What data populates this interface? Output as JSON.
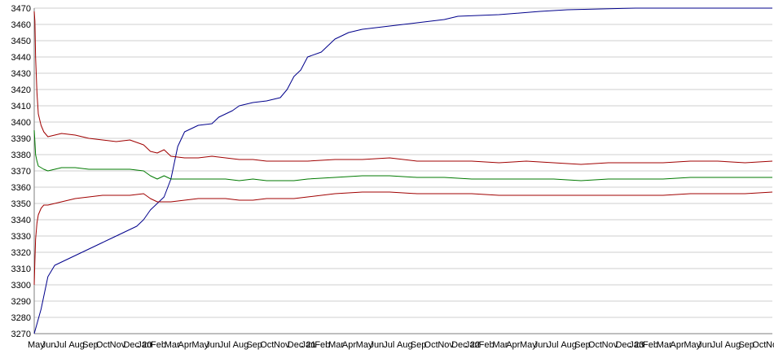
{
  "chart_data": {
    "type": "line",
    "title": "",
    "xlabel": "",
    "ylabel": "",
    "ylim": [
      3270,
      3470
    ],
    "grid": true,
    "legend": "none",
    "y_ticks": [
      3270,
      3280,
      3290,
      3300,
      3310,
      3320,
      3330,
      3340,
      3350,
      3360,
      3370,
      3380,
      3390,
      3400,
      3410,
      3420,
      3430,
      3440,
      3450,
      3460,
      3470
    ],
    "x_tick_labels": [
      "May",
      "Jun",
      "Jul",
      "Aug",
      "Sep",
      "Oct",
      "Nov",
      "Dec",
      "Jan",
      "Feb",
      "Mar",
      "Apr",
      "May",
      "Jun",
      "Jul",
      "Aug",
      "Sep",
      "Oct",
      "Nov",
      "Dec",
      "Jan",
      "Feb",
      "Mar",
      "Apr",
      "May",
      "Jun",
      "Jul",
      "Aug",
      "Sep",
      "Oct",
      "Nov",
      "Dec",
      "Jan",
      "Feb",
      "Mar",
      "Apr",
      "May",
      "Jun",
      "Jul",
      "Aug",
      "Sep",
      "Oct",
      "Nov",
      "Dec",
      "Jan",
      "Feb",
      "Mar",
      "Apr",
      "May",
      "Jun",
      "Jul",
      "Aug",
      "Sep",
      "Oct",
      "No"
    ],
    "x_tick_year_labels": [
      {
        "index": 8,
        "text": "20"
      },
      {
        "index": 20,
        "text": "21"
      },
      {
        "index": 32,
        "text": "22"
      },
      {
        "index": 44,
        "text": "23"
      }
    ],
    "x_range": [
      0,
      54
    ],
    "colors": {
      "blue": "#00008b",
      "red": "#a00000",
      "green": "#007a00"
    },
    "series": [
      {
        "color": "blue",
        "x": [
          0,
          0.5,
          1,
          1.5,
          2,
          3,
          4,
          5,
          6,
          6.5,
          7,
          7.5,
          8,
          8.5,
          9,
          9.5,
          10,
          10.5,
          11,
          11.5,
          12,
          13,
          13.5,
          14,
          14.5,
          15,
          16,
          17,
          18,
          18.5,
          19,
          19.5,
          20,
          21,
          22,
          23,
          24,
          25,
          26,
          27,
          28,
          30,
          31,
          34,
          37,
          39,
          44,
          46,
          54
        ],
        "y": [
          3270,
          3285,
          3305,
          3312,
          3314,
          3318,
          3322,
          3326,
          3330,
          3332,
          3334,
          3336,
          3340,
          3346,
          3350,
          3354,
          3365,
          3385,
          3394,
          3396,
          3398,
          3399,
          3403,
          3405,
          3407,
          3410,
          3412,
          3413,
          3415,
          3420,
          3428,
          3432,
          3440,
          3443,
          3451,
          3455,
          3457,
          3458,
          3459,
          3460,
          3461,
          3463,
          3465,
          3466,
          3468,
          3469,
          3470,
          3470,
          3470
        ]
      },
      {
        "color": "red",
        "x": [
          0,
          0.05,
          0.1,
          0.2,
          0.3,
          0.5,
          0.7,
          1,
          1.5,
          2,
          3,
          4,
          5,
          6,
          7,
          8,
          8.5,
          9,
          9.5,
          10,
          11,
          12,
          13,
          14,
          15,
          16,
          17,
          18,
          19,
          20,
          22,
          24,
          26,
          28,
          30,
          32,
          34,
          36,
          38,
          40,
          42,
          44,
          46,
          48,
          50,
          52,
          54
        ],
        "y": [
          3468,
          3462,
          3440,
          3418,
          3405,
          3398,
          3394,
          3391,
          3392,
          3393,
          3392,
          3390,
          3389,
          3388,
          3389,
          3386,
          3382,
          3381,
          3383,
          3379,
          3378,
          3378,
          3379,
          3378,
          3377,
          3377,
          3376,
          3376,
          3376,
          3376,
          3377,
          3377,
          3378,
          3376,
          3376,
          3376,
          3375,
          3376,
          3375,
          3374,
          3375,
          3375,
          3375,
          3376,
          3376,
          3375,
          3376
        ]
      },
      {
        "color": "green",
        "x": [
          0,
          0.05,
          0.1,
          0.2,
          0.3,
          0.5,
          0.7,
          1,
          1.5,
          2,
          3,
          4,
          5,
          6,
          7,
          8,
          8.5,
          9,
          9.5,
          10,
          11,
          12,
          13,
          14,
          15,
          16,
          17,
          18,
          19,
          20,
          22,
          24,
          26,
          28,
          30,
          32,
          34,
          36,
          38,
          40,
          42,
          44,
          46,
          48,
          50,
          52,
          54
        ],
        "y": [
          3395,
          3388,
          3380,
          3376,
          3373,
          3372,
          3371,
          3370,
          3371,
          3372,
          3372,
          3371,
          3371,
          3371,
          3371,
          3370,
          3367,
          3365,
          3367,
          3365,
          3365,
          3365,
          3365,
          3365,
          3364,
          3365,
          3364,
          3364,
          3364,
          3365,
          3366,
          3367,
          3367,
          3366,
          3366,
          3365,
          3365,
          3365,
          3365,
          3364,
          3365,
          3365,
          3365,
          3366,
          3366,
          3366,
          3366
        ]
      },
      {
        "color": "red",
        "x": [
          0,
          0.05,
          0.1,
          0.2,
          0.3,
          0.5,
          0.7,
          1,
          1.5,
          2,
          3,
          4,
          5,
          6,
          7,
          8,
          8.5,
          9,
          9.5,
          10,
          11,
          12,
          13,
          14,
          15,
          16,
          17,
          18,
          19,
          20,
          22,
          24,
          26,
          28,
          30,
          32,
          34,
          36,
          38,
          40,
          42,
          44,
          46,
          48,
          50,
          52,
          54
        ],
        "y": [
          3300,
          3315,
          3328,
          3338,
          3343,
          3347,
          3349,
          3349,
          3350,
          3351,
          3353,
          3354,
          3355,
          3355,
          3355,
          3356,
          3353,
          3351,
          3351,
          3351,
          3352,
          3353,
          3353,
          3353,
          3352,
          3352,
          3353,
          3353,
          3353,
          3354,
          3356,
          3357,
          3357,
          3356,
          3356,
          3356,
          3355,
          3355,
          3355,
          3355,
          3355,
          3355,
          3355,
          3356,
          3356,
          3356,
          3357
        ]
      }
    ]
  }
}
